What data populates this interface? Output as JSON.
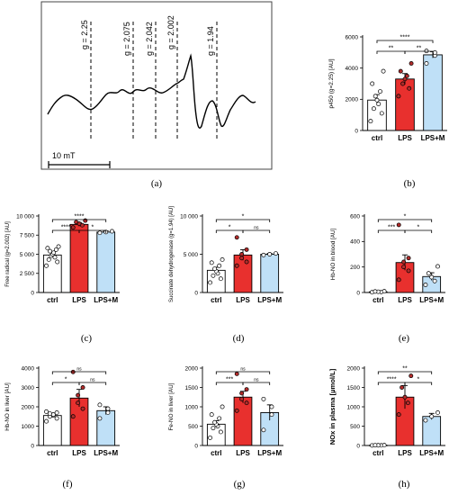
{
  "panels": {
    "a": {
      "caption": "(a)"
    },
    "b": {
      "caption": "(b)"
    },
    "c": {
      "caption": "(c)"
    },
    "d": {
      "caption": "(d)"
    },
    "e": {
      "caption": "(e)"
    },
    "f": {
      "caption": "(f)"
    },
    "g": {
      "caption": "(g)"
    },
    "h": {
      "caption": "(h)"
    }
  },
  "chart_data": [
    {
      "panel": "a",
      "type": "line",
      "title": "",
      "g_markers": [
        "g = 2.25",
        "g = 2.075",
        "g = 2.042",
        "g = 2.002",
        "g = 1.94"
      ],
      "scale_bar_label": "10 mT",
      "grid": false
    },
    {
      "panel": "b",
      "type": "bar",
      "ylabel": "p450 (g=2.25) [AU]",
      "categories": [
        "ctrl",
        "LPS",
        "LPS+M"
      ],
      "values": [
        1950,
        3300,
        4850
      ],
      "errors": [
        350,
        350,
        200
      ],
      "bar_colors": [
        "#ffffff",
        "#e8302e",
        "#bfe0f7"
      ],
      "yticks": [
        0,
        2000,
        4000,
        6000
      ],
      "ylim": [
        0,
        6000
      ],
      "points": [
        [
          600,
          1100,
          1400,
          1700,
          1950,
          2200,
          2500,
          3000,
          3800
        ],
        [
          2200,
          2700,
          3000,
          3300,
          3500,
          3800,
          4300
        ],
        [
          4300,
          4800,
          5000,
          5100
        ]
      ],
      "significance": [
        {
          "from": 0,
          "to": 1,
          "label": "**"
        },
        {
          "from": 1,
          "to": 2,
          "label": "**"
        },
        {
          "from": 0,
          "to": 2,
          "label": "****"
        }
      ]
    },
    {
      "panel": "c",
      "type": "bar",
      "ylabel": "Free radical (g=2.002) [AU]",
      "categories": [
        "ctrl",
        "LPS",
        "LPS+M"
      ],
      "values": [
        4900,
        8900,
        7900
      ],
      "errors": [
        300,
        250,
        150
      ],
      "bar_colors": [
        "#ffffff",
        "#e8302e",
        "#bfe0f7"
      ],
      "yticks": [
        0,
        2500,
        5000,
        7500,
        10000
      ],
      "ytick_labels": [
        "0",
        "2 500",
        "5 000",
        "7 500",
        "10 000"
      ],
      "ylim": [
        0,
        10000
      ],
      "points": [
        [
          3500,
          4000,
          4300,
          4600,
          4800,
          5000,
          5200,
          5400,
          5600,
          5800,
          6000
        ],
        [
          8500,
          8800,
          9000,
          9200,
          9400
        ],
        [
          7800,
          7900,
          8000
        ]
      ],
      "significance": [
        {
          "from": 0,
          "to": 1,
          "label": "****"
        },
        {
          "from": 1,
          "to": 2,
          "label": "*"
        },
        {
          "from": 0,
          "to": 2,
          "label": "****"
        }
      ]
    },
    {
      "panel": "d",
      "type": "bar",
      "ylabel": "Succinate dehydrogenase (g=1.94) [AU]",
      "categories": [
        "ctrl",
        "LPS",
        "LPS+M"
      ],
      "values": [
        2900,
        4900,
        5000
      ],
      "errors": [
        400,
        700,
        100
      ],
      "bar_colors": [
        "#ffffff",
        "#e8302e",
        "#bfe0f7"
      ],
      "yticks": [
        0,
        5000,
        10000
      ],
      "ytick_labels": [
        "0",
        "5 000",
        "10 000"
      ],
      "ylim": [
        0,
        10000
      ],
      "points": [
        [
          1300,
          1800,
          2200,
          2500,
          2800,
          3100,
          3500,
          3900,
          4300
        ],
        [
          3500,
          4000,
          4500,
          5000,
          5600,
          7200
        ],
        [
          4900,
          5000,
          5100
        ]
      ],
      "significance": [
        {
          "from": 0,
          "to": 1,
          "label": "*"
        },
        {
          "from": 1,
          "to": 2,
          "label": "ns"
        },
        {
          "from": 0,
          "to": 2,
          "label": "*"
        }
      ]
    },
    {
      "panel": "e",
      "type": "bar",
      "ylabel": "Hb-NO in blood [AU]",
      "categories": [
        "ctrl",
        "LPS",
        "LPS+M"
      ],
      "values": [
        5,
        235,
        125
      ],
      "errors": [
        3,
        60,
        30
      ],
      "bar_colors": [
        "#ffffff",
        "#e8302e",
        "#bfe0f7"
      ],
      "yticks": [
        0,
        200,
        400,
        600
      ],
      "ylim": [
        0,
        600
      ],
      "points": [
        [
          2,
          4,
          6,
          8,
          10
        ],
        [
          100,
          170,
          200,
          240,
          270,
          530
        ],
        [
          60,
          90,
          120,
          150,
          205
        ]
      ],
      "significance": [
        {
          "from": 0,
          "to": 1,
          "label": "***"
        },
        {
          "from": 1,
          "to": 2,
          "label": "*"
        },
        {
          "from": 0,
          "to": 2,
          "label": "*"
        }
      ]
    },
    {
      "panel": "f",
      "type": "bar",
      "ylabel": "Hb-NO in liver [AU]",
      "categories": [
        "ctrl",
        "LPS",
        "LPS+M"
      ],
      "values": [
        1550,
        2450,
        1800
      ],
      "errors": [
        100,
        450,
        200
      ],
      "bar_colors": [
        "#ffffff",
        "#e8302e",
        "#bfe0f7"
      ],
      "yticks": [
        0,
        1000,
        2000,
        3000,
        4000
      ],
      "ylim": [
        0,
        4000
      ],
      "points": [
        [
          1250,
          1400,
          1500,
          1550,
          1600,
          1650,
          1700,
          1750
        ],
        [
          1500,
          1900,
          2200,
          2600,
          3000,
          3800
        ],
        [
          1400,
          1700,
          1900,
          2100
        ]
      ],
      "significance": [
        {
          "from": 0,
          "to": 1,
          "label": "*"
        },
        {
          "from": 1,
          "to": 2,
          "label": "ns"
        },
        {
          "from": 0,
          "to": 2,
          "label": "ns"
        }
      ]
    },
    {
      "panel": "g",
      "type": "bar",
      "ylabel": "Fe-NO in liver [AU]",
      "categories": [
        "ctrl",
        "LPS",
        "LPS+M"
      ],
      "values": [
        550,
        1250,
        850
      ],
      "errors": [
        90,
        150,
        200
      ],
      "bar_colors": [
        "#ffffff",
        "#e8302e",
        "#bfe0f7"
      ],
      "yticks": [
        0,
        500,
        1000,
        1500,
        2000
      ],
      "ylim": [
        0,
        2000
      ],
      "points": [
        [
          200,
          350,
          450,
          500,
          550,
          600,
          700,
          800,
          1000
        ],
        [
          900,
          1100,
          1200,
          1350,
          1450,
          1850
        ],
        [
          400,
          800,
          1000,
          1200
        ]
      ],
      "significance": [
        {
          "from": 0,
          "to": 1,
          "label": "***"
        },
        {
          "from": 1,
          "to": 2,
          "label": "ns"
        },
        {
          "from": 0,
          "to": 2,
          "label": "ns"
        }
      ]
    },
    {
      "panel": "h",
      "type": "bar",
      "ylabel": "NOx in plasma [µmol/L]",
      "categories": [
        "ctrl",
        "LPS",
        "LPS+M"
      ],
      "values": [
        5,
        1250,
        750
      ],
      "errors": [
        3,
        300,
        80
      ],
      "bar_colors": [
        "#ffffff",
        "#e8302e",
        "#bfe0f7"
      ],
      "yticks": [
        0,
        500,
        1000,
        1500,
        2000
      ],
      "ylim": [
        0,
        2000
      ],
      "points": [
        [
          2,
          4,
          6,
          8,
          10
        ],
        [
          800,
          1100,
          1250,
          1500,
          1800
        ],
        [
          650,
          750,
          850
        ]
      ],
      "significance": [
        {
          "from": 0,
          "to": 1,
          "label": "****"
        },
        {
          "from": 1,
          "to": 2,
          "label": "*"
        },
        {
          "from": 0,
          "to": 2,
          "label": "**"
        }
      ]
    }
  ]
}
